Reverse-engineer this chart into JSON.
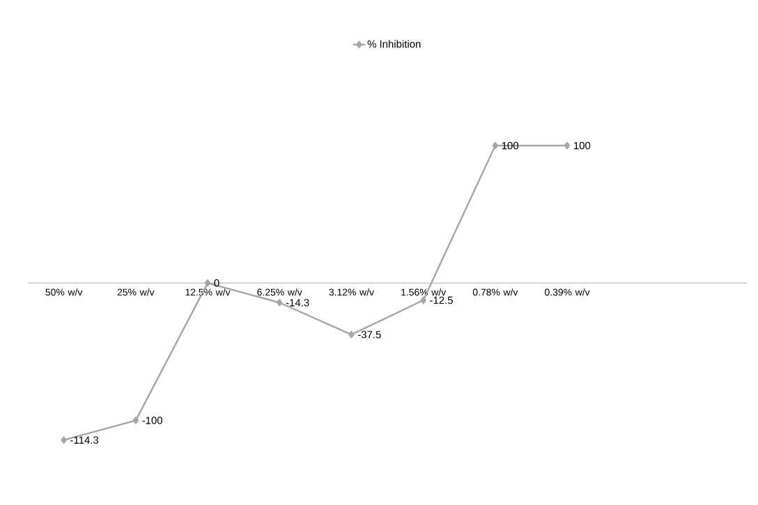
{
  "chart_data": {
    "type": "line",
    "categories": [
      "50% w/v",
      "25% w/v",
      "12.5% w/v",
      "6.25% w/v",
      "3.12% w/v",
      "1.56% w/v",
      "0.78% w/v",
      "0.39% w/v",
      null,
      null
    ],
    "series": [
      {
        "name": "% Inhibition",
        "color": "#a6a6a6",
        "values": [
          -114.3,
          -100,
          0,
          -14.3,
          -37.5,
          -12.5,
          100,
          100,
          null,
          null
        ]
      }
    ],
    "data_labels": true,
    "marker": "diamond",
    "line_style": "solid",
    "legend": "top"
  }
}
